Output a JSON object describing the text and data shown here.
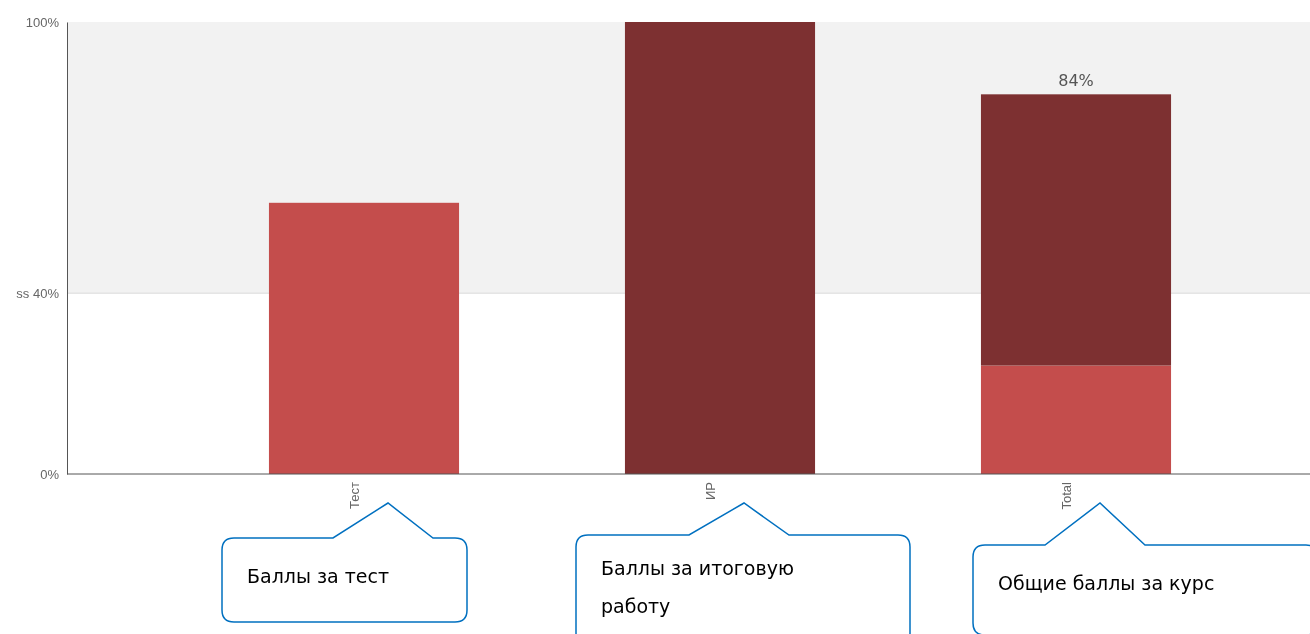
{
  "chart_data": {
    "type": "bar",
    "categories": [
      "Тест",
      "ИР",
      "Total"
    ],
    "stacked": true,
    "series": [
      {
        "color": "#c44d4c",
        "values": [
          60,
          null,
          24
        ]
      },
      {
        "color": "#7d3031",
        "values": [
          null,
          100,
          60
        ]
      }
    ],
    "ylim": [
      0,
      100
    ],
    "yticks": [
      {
        "value": 0,
        "label": "0%"
      },
      {
        "value": 40,
        "label": "ss 40%"
      },
      {
        "value": 100,
        "label": "100%"
      }
    ],
    "bands": [
      {
        "axis": "y",
        "from": 40,
        "to": 100,
        "color": "#f2f2f2"
      }
    ],
    "ref_lines": [
      {
        "axis": "y",
        "value": 40,
        "color": "#d9d9d9"
      }
    ],
    "totals": [
      null,
      null,
      "84%"
    ],
    "grid": false,
    "annotations": [
      "Баллы за тест",
      "Баллы за итоговую работу",
      "Общие баллы за курс"
    ]
  }
}
